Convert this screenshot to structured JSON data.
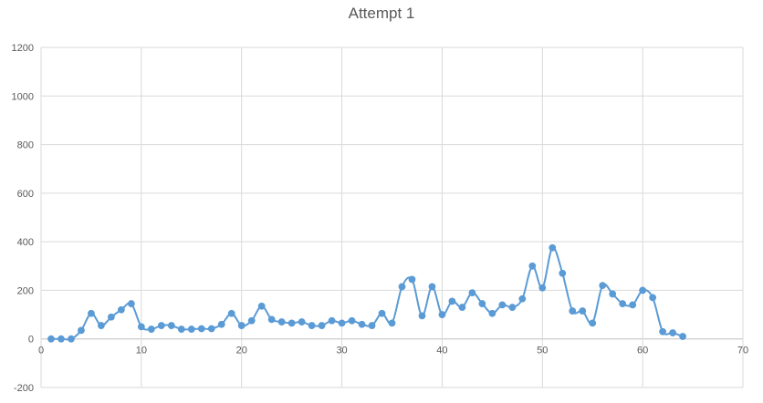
{
  "chart_data": {
    "type": "line",
    "title": "Attempt 1",
    "xlabel": "",
    "ylabel": "",
    "xlim": [
      0,
      70
    ],
    "ylim": [
      -200,
      1200
    ],
    "xticks": [
      0,
      10,
      20,
      30,
      40,
      50,
      60,
      70
    ],
    "yticks": [
      -200,
      0,
      200,
      400,
      600,
      800,
      1000,
      1200
    ],
    "grid": true,
    "legend": "none",
    "smooth": true,
    "color": "#5B9BD5",
    "series": [
      {
        "x": [
          1,
          2,
          3,
          4,
          5,
          6,
          7,
          8,
          9,
          10,
          11,
          12,
          13,
          14,
          15,
          16,
          17,
          18,
          19,
          20,
          21,
          22,
          23,
          24,
          25,
          26,
          27,
          28,
          29,
          30,
          31,
          32,
          33,
          34,
          35,
          36,
          37,
          38,
          39,
          40,
          41,
          42,
          43,
          44,
          45,
          46,
          47,
          48,
          49,
          50,
          51,
          52,
          53,
          54,
          55,
          56,
          57,
          58,
          59,
          60,
          61,
          62,
          63,
          64
        ],
        "y": [
          0,
          0,
          0,
          35,
          105,
          55,
          90,
          120,
          145,
          50,
          40,
          55,
          55,
          40,
          40,
          42,
          42,
          60,
          105,
          55,
          75,
          135,
          80,
          70,
          65,
          70,
          55,
          55,
          75,
          65,
          75,
          60,
          55,
          105,
          65,
          215,
          245,
          95,
          215,
          100,
          155,
          130,
          190,
          145,
          105,
          140,
          130,
          165,
          300,
          210,
          375,
          270,
          115,
          115,
          65,
          220,
          185,
          145,
          140,
          200,
          170,
          30,
          25,
          10
        ]
      }
    ]
  }
}
